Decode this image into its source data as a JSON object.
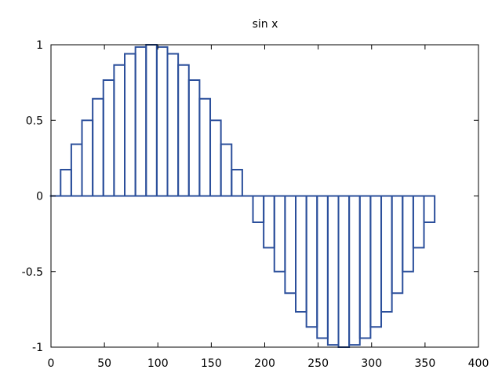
{
  "chart_data": {
    "type": "bar",
    "title": "sin x",
    "xlabel": "",
    "ylabel": "",
    "xlim": [
      0,
      400
    ],
    "ylim": [
      -1,
      1
    ],
    "xticks": [
      0,
      50,
      100,
      150,
      200,
      250,
      300,
      350,
      400
    ],
    "yticks": [
      -1,
      -0.5,
      0,
      0.5,
      1
    ],
    "xtick_labels": [
      "0",
      "50",
      "100",
      "150",
      "200",
      "250",
      "300",
      "350",
      "400"
    ],
    "ytick_labels": [
      "-1",
      "-0.5",
      "0",
      "0.5",
      "1"
    ],
    "grid": false,
    "bar_color": "#2b4f9b",
    "bar_style": "outline",
    "bar_width": 10,
    "x": [
      0,
      10,
      20,
      30,
      40,
      50,
      60,
      70,
      80,
      90,
      100,
      110,
      120,
      130,
      140,
      150,
      160,
      170,
      180,
      190,
      200,
      210,
      220,
      230,
      240,
      250,
      260,
      270,
      280,
      290,
      300,
      310,
      320,
      330,
      340,
      350
    ],
    "values": [
      0,
      0.174,
      0.342,
      0.5,
      0.643,
      0.766,
      0.866,
      0.94,
      0.985,
      1,
      0.985,
      0.94,
      0.866,
      0.766,
      0.643,
      0.5,
      0.342,
      0.174,
      0,
      -0.174,
      -0.342,
      -0.5,
      -0.643,
      -0.766,
      -0.866,
      -0.94,
      -0.985,
      -1,
      -0.985,
      -0.94,
      -0.866,
      -0.766,
      -0.643,
      -0.5,
      -0.342,
      -0.174
    ]
  }
}
